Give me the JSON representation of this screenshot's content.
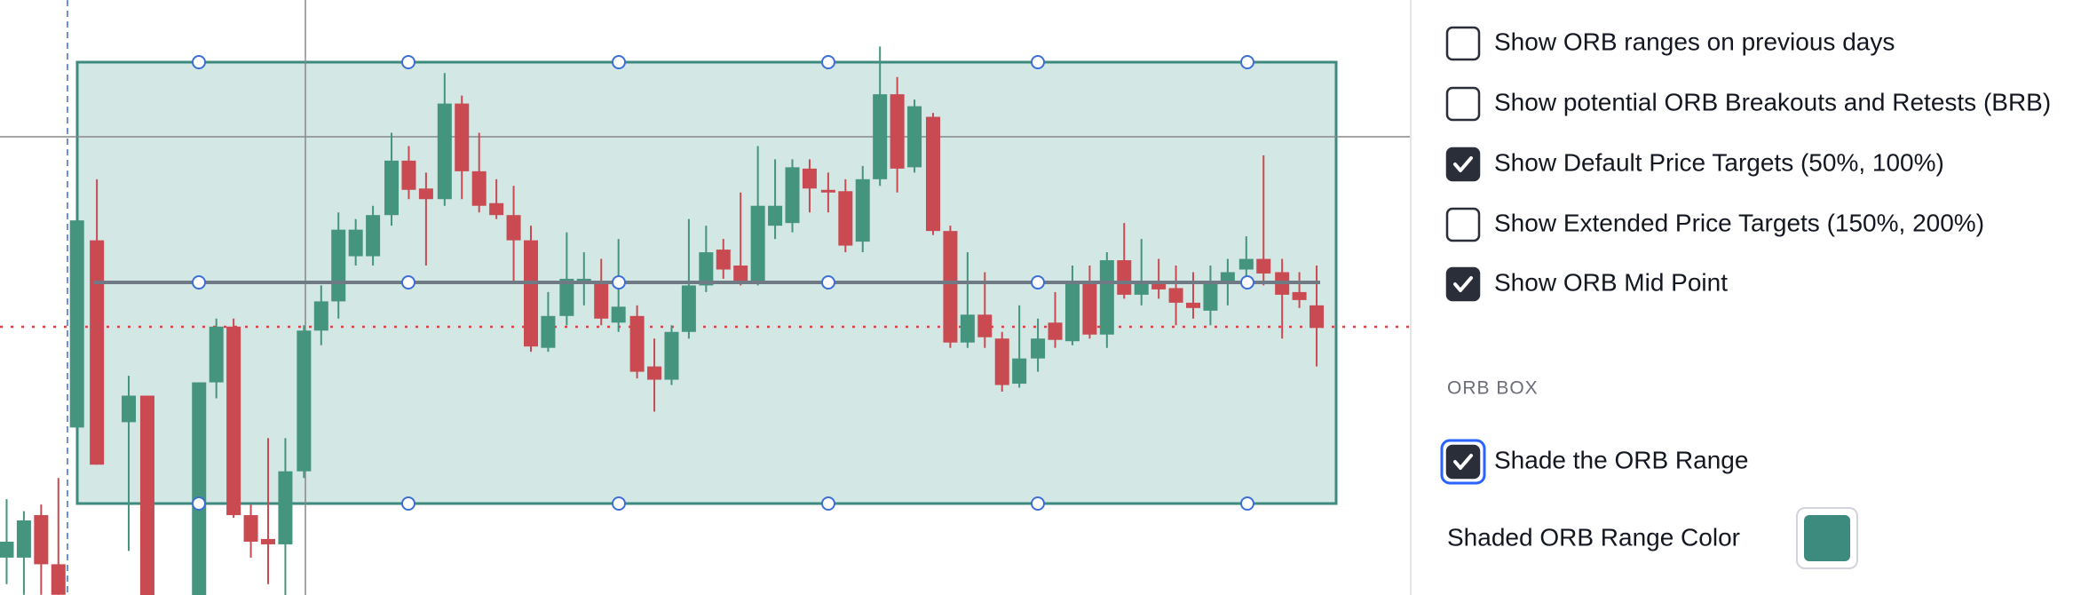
{
  "options": [
    {
      "label": "Show ORB ranges on previous days",
      "checked": false
    },
    {
      "label": "Show potential ORB Breakouts and Retests (BRB)",
      "checked": false
    },
    {
      "label": "Show Default Price Targets (50%, 100%)",
      "checked": true
    },
    {
      "label": "Show Extended Price Targets (150%, 200%)",
      "checked": false
    },
    {
      "label": "Show ORB Mid Point",
      "checked": true
    }
  ],
  "section": {
    "title": "ORB BOX",
    "shade_option": {
      "label": "Shade the ORB Range",
      "checked": true
    },
    "color_option": {
      "label": "Shaded ORB Range Color",
      "color": "#3d8a7e"
    }
  }
}
